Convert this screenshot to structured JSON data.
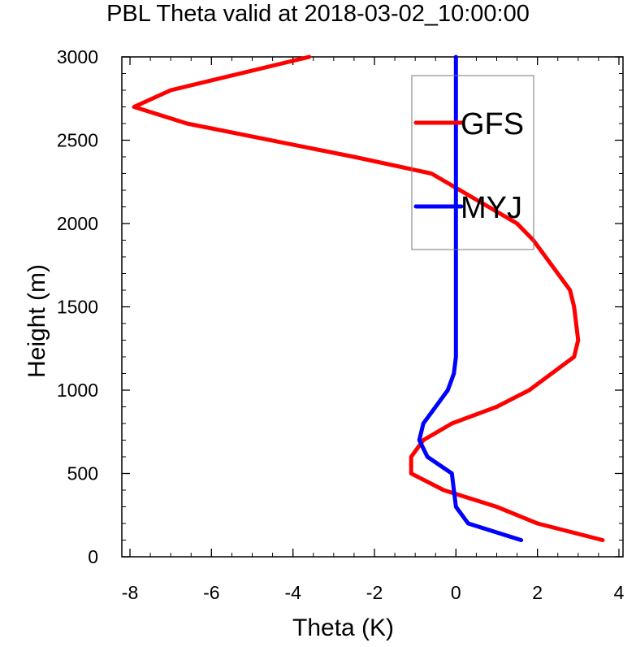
{
  "chart_data": {
    "type": "line",
    "title": "PBL Theta valid at 2018-03-02_10:00:00",
    "xlabel": "Theta (K)",
    "ylabel": "Height (m)",
    "xlim": [
      -8.2,
      4.1
    ],
    "ylim": [
      0,
      3000
    ],
    "x_ticks": [
      -8,
      -6,
      -4,
      -2,
      0,
      2,
      4
    ],
    "y_ticks": [
      0,
      500,
      1000,
      1500,
      2000,
      2500,
      3000
    ],
    "x_tick_labels": [
      "-8",
      "-6",
      "-4",
      "-2",
      "0",
      "2",
      "4"
    ],
    "y_tick_labels": [
      "0",
      "500",
      "1000",
      "1500",
      "2000",
      "2500",
      "3000"
    ],
    "grid": false,
    "legend_position": "top-right, inside box",
    "series": [
      {
        "name": "GFS",
        "color": "#ff0000",
        "points": [
          [
            3.6,
            100
          ],
          [
            2.0,
            200
          ],
          [
            1.0,
            300
          ],
          [
            -0.3,
            400
          ],
          [
            -1.1,
            500
          ],
          [
            -1.1,
            600
          ],
          [
            -0.8,
            700
          ],
          [
            -0.1,
            800
          ],
          [
            1.0,
            900
          ],
          [
            1.8,
            1000
          ],
          [
            2.9,
            1200
          ],
          [
            3.0,
            1300
          ],
          [
            2.9,
            1500
          ],
          [
            2.8,
            1600
          ],
          [
            1.9,
            1900
          ],
          [
            1.5,
            2000
          ],
          [
            0.8,
            2100
          ],
          [
            -0.6,
            2300
          ],
          [
            -2.5,
            2400
          ],
          [
            -6.6,
            2600
          ],
          [
            -7.9,
            2700
          ],
          [
            -7.0,
            2800
          ],
          [
            -3.6,
            3000
          ]
        ]
      },
      {
        "name": "MYJ",
        "color": "#0000ff",
        "points": [
          [
            1.6,
            100
          ],
          [
            0.3,
            200
          ],
          [
            0.0,
            300
          ],
          [
            -0.1,
            500
          ],
          [
            -0.7,
            600
          ],
          [
            -0.9,
            700
          ],
          [
            -0.8,
            800
          ],
          [
            -0.5,
            900
          ],
          [
            -0.2,
            1000
          ],
          [
            -0.05,
            1100
          ],
          [
            0.0,
            1200
          ],
          [
            0.0,
            1400
          ],
          [
            0.0,
            1600
          ],
          [
            0.0,
            2000
          ],
          [
            0.0,
            2500
          ],
          [
            0.0,
            3000
          ]
        ]
      }
    ]
  }
}
